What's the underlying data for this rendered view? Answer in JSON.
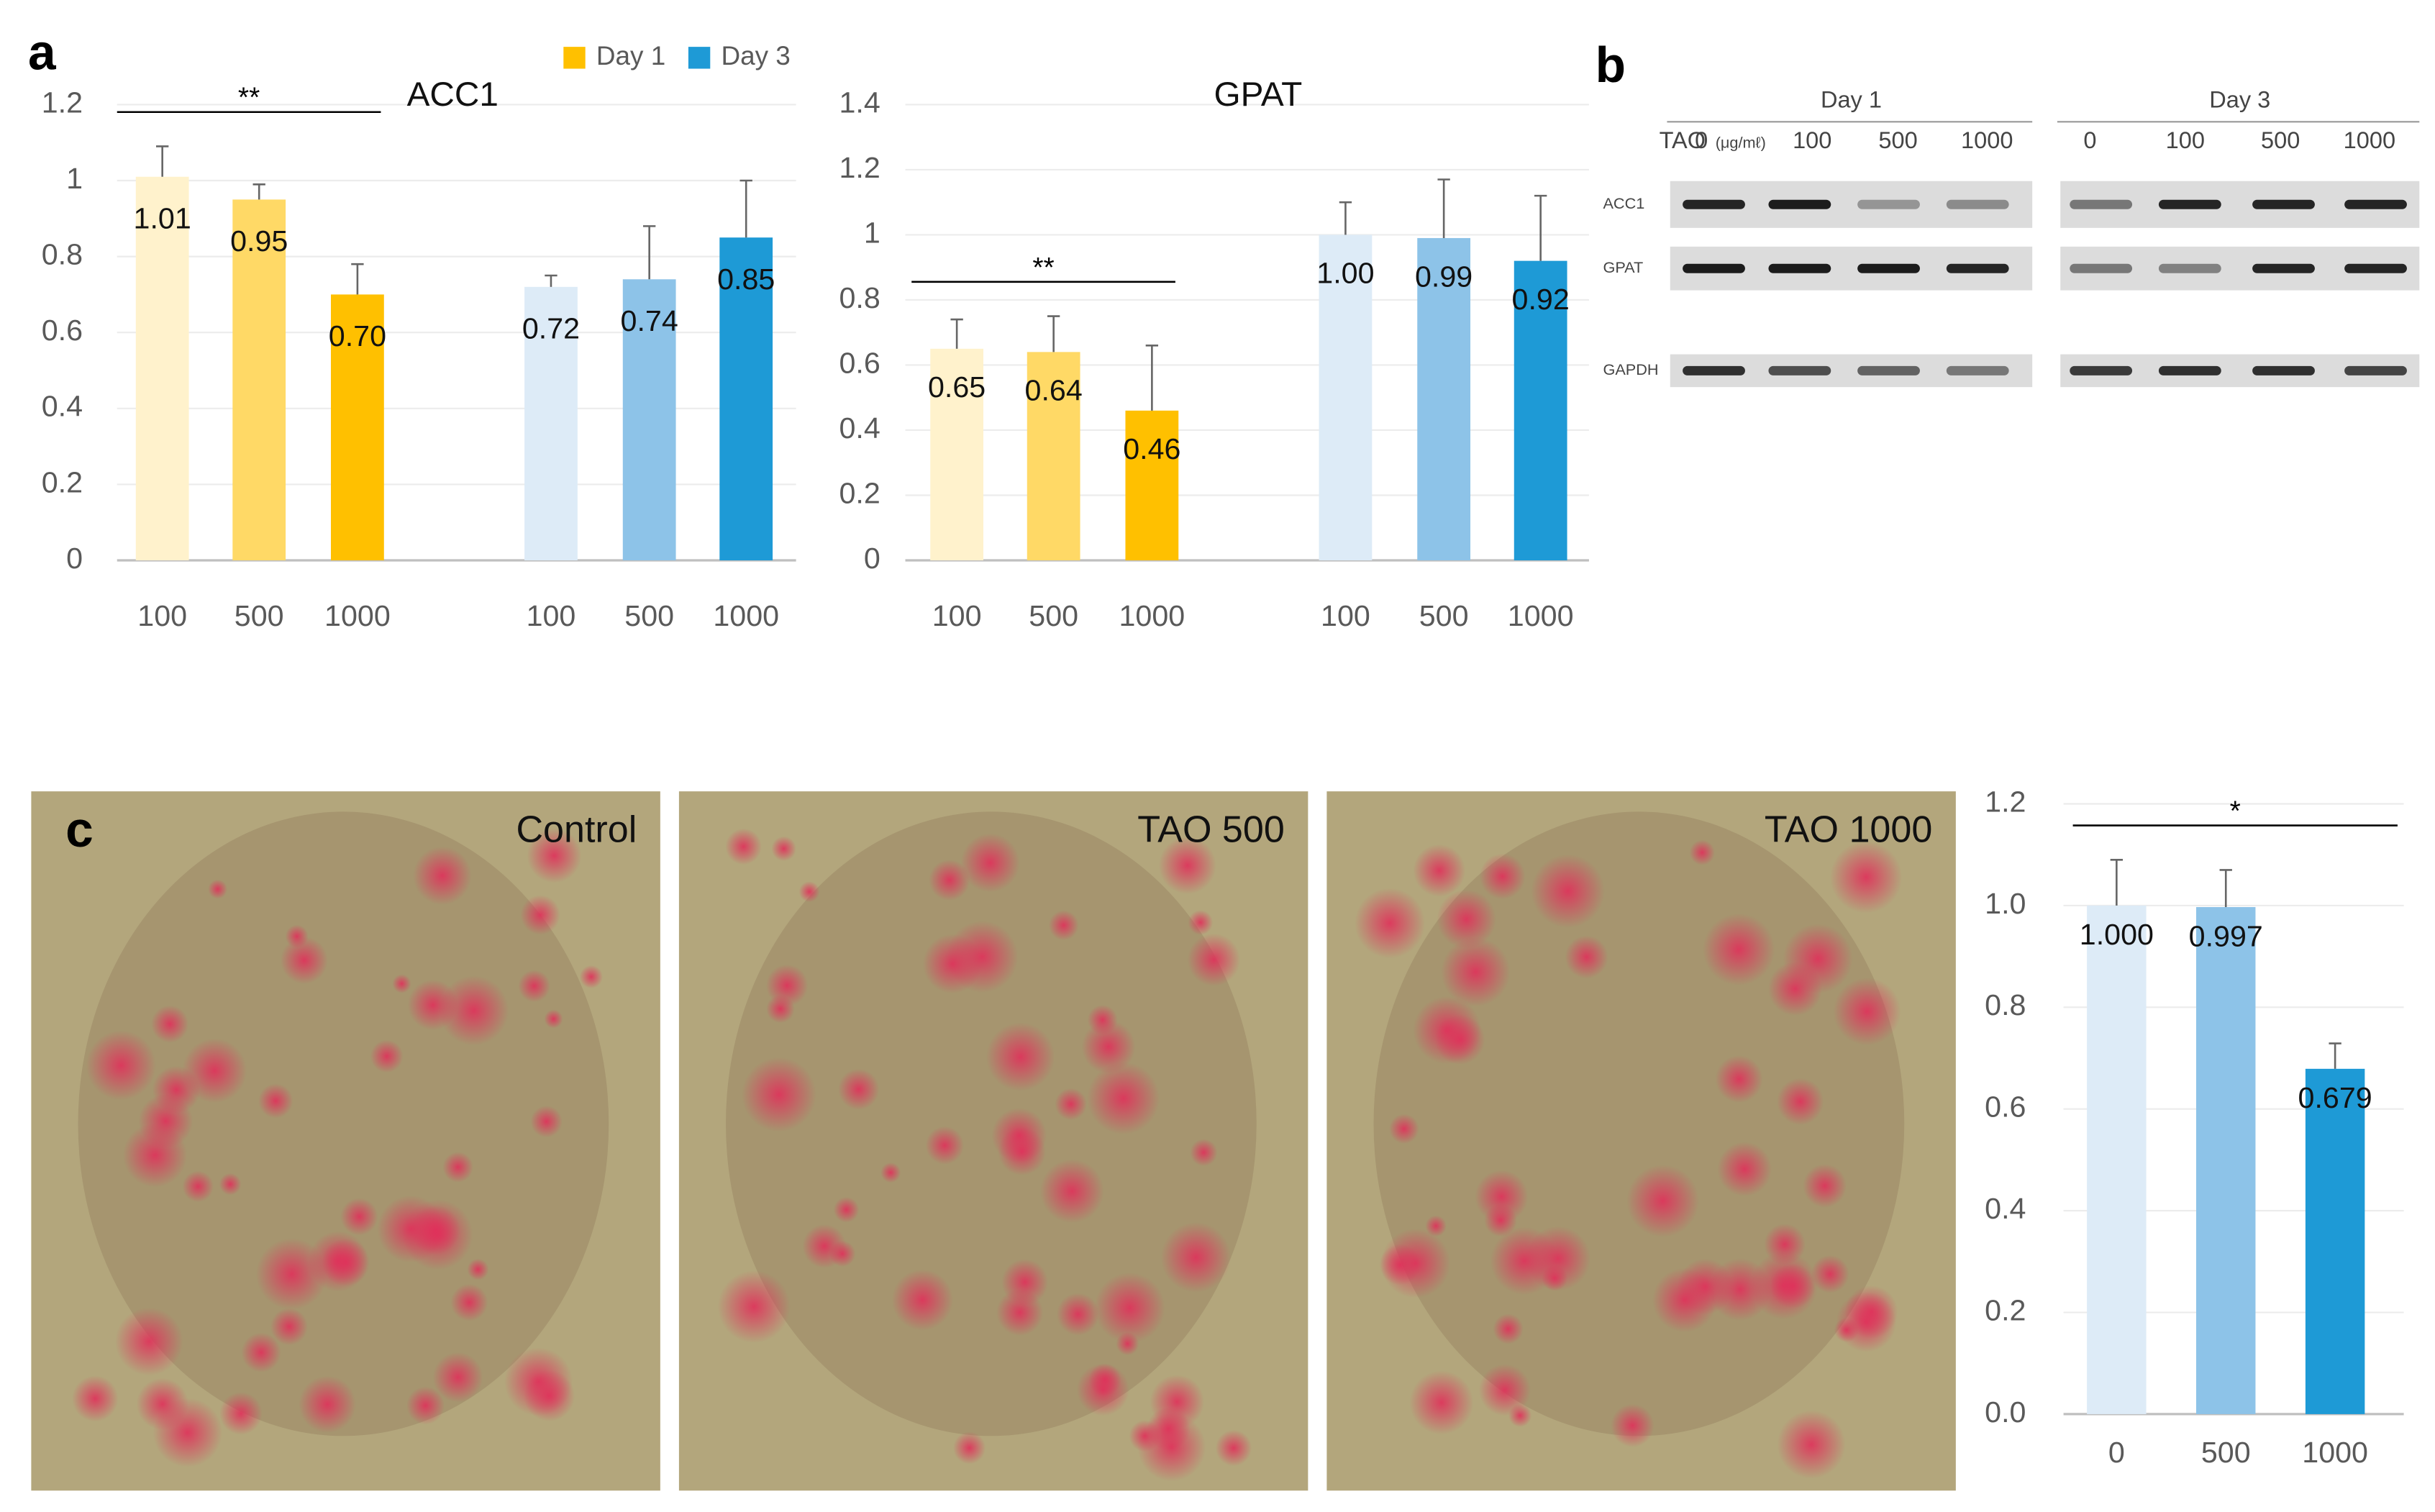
{
  "panel_labels": [
    "a",
    "b",
    "c"
  ],
  "chart_data": [
    {
      "type": "bar",
      "title": "ACC1",
      "categories": [
        "100",
        "500",
        "1000"
      ],
      "series": [
        {
          "name": "Day 1",
          "color": "#FFC000",
          "colors": [
            "#FFF2CC",
            "#FFD966",
            "#FFC000"
          ],
          "values": [
            1.01,
            0.95,
            0.7
          ],
          "value_labels": [
            "1.01",
            "0.95",
            "0.70"
          ],
          "errors": [
            0.08,
            0.04,
            0.08
          ]
        },
        {
          "name": "Day 3",
          "color": "#1E9AD6",
          "colors": [
            "#DDEBF7",
            "#8DC3E8",
            "#1E9AD6"
          ],
          "values": [
            0.72,
            0.74,
            0.85
          ],
          "value_labels": [
            "0.72",
            "0.74",
            "0.85"
          ],
          "errors": [
            0.03,
            0.14,
            0.15
          ]
        }
      ],
      "ylim": [
        0,
        1.2
      ],
      "yticks": [
        0,
        0.2,
        0.4,
        0.6,
        0.8,
        1,
        1.2
      ],
      "grid": true,
      "legend": "top-right",
      "annotation": "**"
    },
    {
      "type": "bar",
      "title": "GPAT",
      "categories": [
        "100",
        "500",
        "1000"
      ],
      "series": [
        {
          "colors": [
            "#FFF2CC",
            "#FFD966",
            "#FFC000"
          ],
          "values": [
            0.65,
            0.64,
            0.46
          ],
          "value_labels": [
            "0.65",
            "0.64",
            "0.46"
          ],
          "errors": [
            0.09,
            0.11,
            0.2
          ]
        },
        {
          "colors": [
            "#DDEBF7",
            "#8DC3E8",
            "#1E9AD6"
          ],
          "values": [
            1.0,
            0.99,
            0.92
          ],
          "value_labels": [
            "1.00",
            "0.99",
            "0.92"
          ],
          "errors": [
            0.1,
            0.18,
            0.2
          ]
        }
      ],
      "ylim": [
        0,
        1.4
      ],
      "yticks": [
        0,
        0.2,
        0.4,
        0.6,
        0.8,
        1,
        1.2,
        1.4
      ],
      "grid": true,
      "annotation": "**"
    },
    {
      "type": "bar",
      "categories": [
        "0",
        "500",
        "1000"
      ],
      "colors": [
        "#DDEBF7",
        "#8DC3E8",
        "#1E9AD6"
      ],
      "values": [
        1.0,
        0.997,
        0.679
      ],
      "value_labels": [
        "1.000",
        "0.997",
        "0.679"
      ],
      "errors": [
        0.09,
        0.073,
        0.05
      ],
      "ylim": [
        0,
        1.2
      ],
      "yticks": [
        {
          "value": 0,
          "label": "0.0"
        },
        0.2,
        0.4,
        0.6,
        0.8,
        {
          "value": 1,
          "label": "1.0"
        },
        1.2
      ],
      "grid": true,
      "annotation": "*"
    }
  ],
  "gel": {
    "dose_label": "TAO",
    "unit": "(μg/mℓ)",
    "groups": [
      {
        "label": "Day 1",
        "lanes": [
          "0",
          "100",
          "500",
          "1000"
        ]
      },
      {
        "label": "Day 3",
        "lanes": [
          "0",
          "100",
          "500",
          "1000"
        ]
      }
    ],
    "rows": [
      "ACC1",
      "GPAT",
      "GAPDH"
    ]
  },
  "micrographs": [
    "Control",
    "TAO 500",
    "TAO 1000"
  ]
}
